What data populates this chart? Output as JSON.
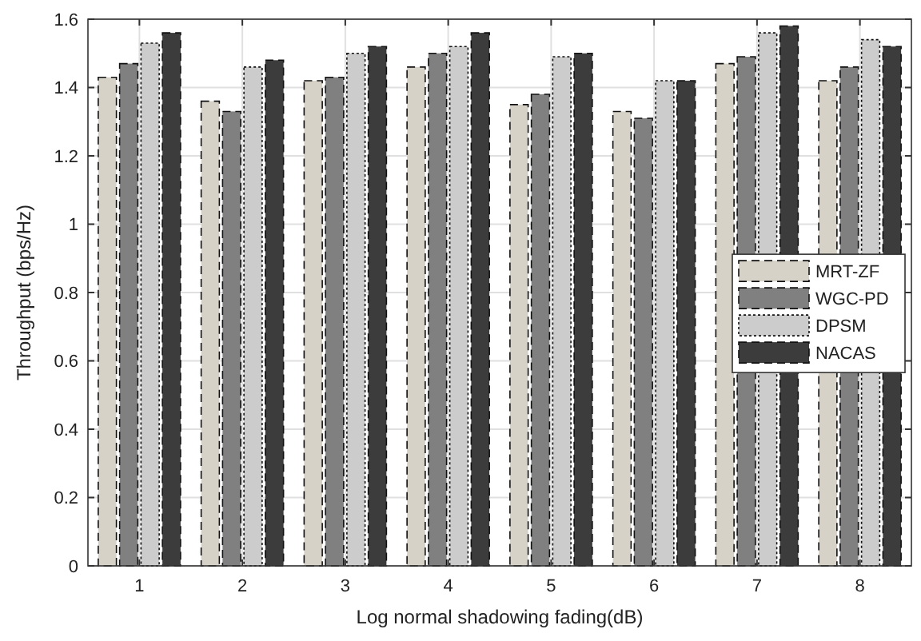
{
  "chart_data": {
    "type": "bar",
    "xlabel": "Log normal shadowing fading(dB)",
    "ylabel": "Throughput (bps/Hz)",
    "categories": [
      "1",
      "2",
      "3",
      "4",
      "5",
      "6",
      "7",
      "8"
    ],
    "series": [
      {
        "name": "MRT-ZF",
        "color": "#d6d2c8",
        "line_style": "dashed",
        "values": [
          1.43,
          1.36,
          1.42,
          1.46,
          1.35,
          1.33,
          1.47,
          1.42
        ]
      },
      {
        "name": "WGC-PD",
        "color": "#808080",
        "line_style": "dashed",
        "values": [
          1.47,
          1.33,
          1.43,
          1.5,
          1.38,
          1.31,
          1.49,
          1.46
        ]
      },
      {
        "name": "DPSM",
        "color": "#cccccc",
        "line_style": "dotted",
        "values": [
          1.53,
          1.46,
          1.5,
          1.52,
          1.49,
          1.42,
          1.56,
          1.54
        ]
      },
      {
        "name": "NACAS",
        "color": "#3c3c3c",
        "line_style": "dashed",
        "values": [
          1.56,
          1.48,
          1.52,
          1.56,
          1.5,
          1.42,
          1.58,
          1.52
        ]
      }
    ],
    "ylim": [
      0,
      1.6
    ],
    "yticks": [
      {
        "value": 0,
        "label": "0"
      },
      {
        "value": 0.2,
        "label": "0.2"
      },
      {
        "value": 0.4,
        "label": "0.4"
      },
      {
        "value": 0.6,
        "label": "0.6"
      },
      {
        "value": 0.8,
        "label": "0.8"
      },
      {
        "value": 1,
        "label": "1"
      },
      {
        "value": 1.2,
        "label": "1.2"
      },
      {
        "value": 1.4,
        "label": "1.4"
      },
      {
        "value": 1.6,
        "label": "1.6"
      }
    ],
    "grid": true,
    "legend": "right"
  }
}
